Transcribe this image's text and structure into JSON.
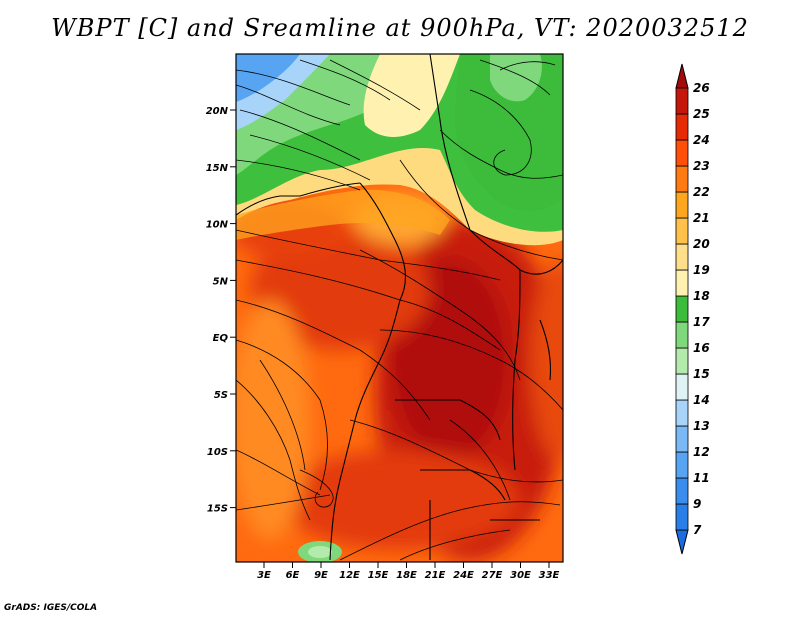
{
  "title": "WBPT [C] and Sreamline at 900hPa, VT: 2020032512",
  "credit": "GrADS: IGES/COLA",
  "map": {
    "lat_labels": [
      "20N",
      "15N",
      "10N",
      "5N",
      "EQ",
      "5S",
      "10S",
      "15S"
    ],
    "lon_labels": [
      "3E",
      "6E",
      "9E",
      "12E",
      "15E",
      "18E",
      "21E",
      "24E",
      "27E",
      "30E",
      "33E"
    ]
  },
  "colorbar": {
    "levels": [
      "7",
      "9",
      "11",
      "12",
      "13",
      "14",
      "15",
      "16",
      "17",
      "18",
      "19",
      "20",
      "21",
      "22",
      "23",
      "24",
      "25",
      "26"
    ],
    "colors": [
      "#1c6ee0",
      "#2a7fe6",
      "#3a8ded",
      "#56a4f2",
      "#7ab9f6",
      "#a8d4fa",
      "#dff3f5",
      "#b4ebad",
      "#7fd97c",
      "#3cbc3a",
      "#fff2b0",
      "#ffdf8a",
      "#ffc14a",
      "#ffa61f",
      "#ff7a10",
      "#ff4f08",
      "#e72a06",
      "#c4160a",
      "#a30b0b"
    ]
  }
}
